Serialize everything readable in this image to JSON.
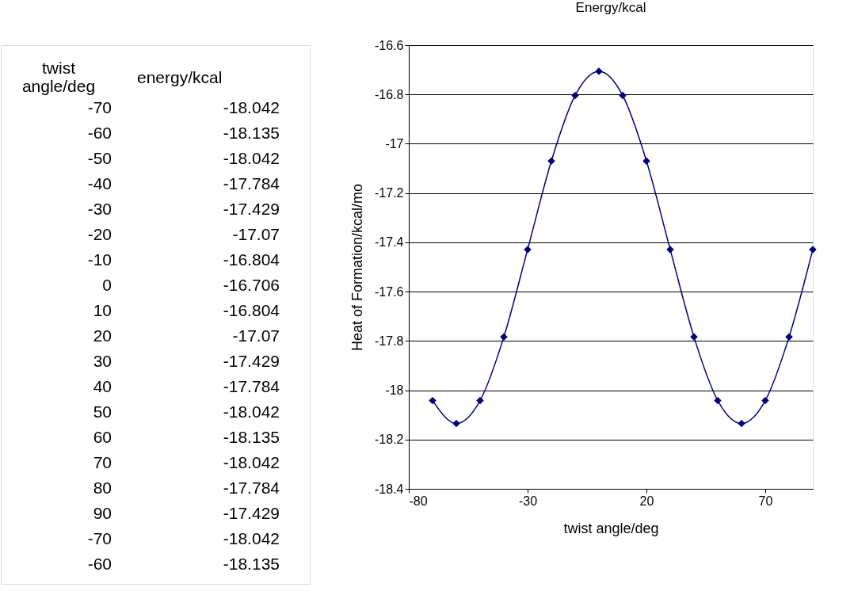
{
  "chart_data": {
    "type": "line",
    "title": "Energy/kcal",
    "xlabel": "twist angle/deg",
    "ylabel": "Heat of Formation/kcal/mo",
    "x": [
      -70,
      -60,
      -50,
      -40,
      -30,
      -20,
      -10,
      0,
      10,
      20,
      30,
      40,
      50,
      60,
      70,
      80,
      90
    ],
    "series": [
      {
        "color": "#000080",
        "values": [
          -18.042,
          -18.135,
          -18.042,
          -17.784,
          -17.429,
          -17.07,
          -16.804,
          -16.706,
          -16.804,
          -17.07,
          -17.429,
          -17.784,
          -18.042,
          -18.135,
          -18.042,
          -17.784,
          -17.429
        ]
      }
    ],
    "xlim": [
      -80,
      90
    ],
    "xticks": [
      -80,
      -30,
      20,
      70
    ],
    "ylim": [
      -18.4,
      -16.6
    ],
    "yticks": [
      -18.4,
      -18.2,
      {
        "value": -18,
        "label": "-18"
      },
      -17.8,
      -17.6,
      -17.4,
      -17.2,
      {
        "value": -17,
        "label": "-17"
      },
      -16.8,
      -16.6
    ],
    "grid": "y",
    "marker": "diamond",
    "line_style": "solid",
    "legend": false,
    "annotations": [
      "twist\nangle/deg",
      "energy/kcal",
      "-70",
      "-18.042",
      "-60",
      "-18.135",
      "-50",
      "-18.042",
      "-40",
      "-17.784",
      "-30",
      "-17.429",
      "-20",
      "-17.07",
      "-10",
      "-16.804",
      "0",
      "-16.706",
      "10",
      "-16.804",
      "20",
      "-17.07",
      "30",
      "-17.429",
      "40",
      "-17.784",
      "50",
      "-18.042",
      "60",
      "-18.135",
      "70",
      "-18.042",
      "80",
      "-17.784",
      "90",
      "-17.429",
      "-70",
      "-18.042",
      "-60",
      "-18.135"
    ]
  }
}
